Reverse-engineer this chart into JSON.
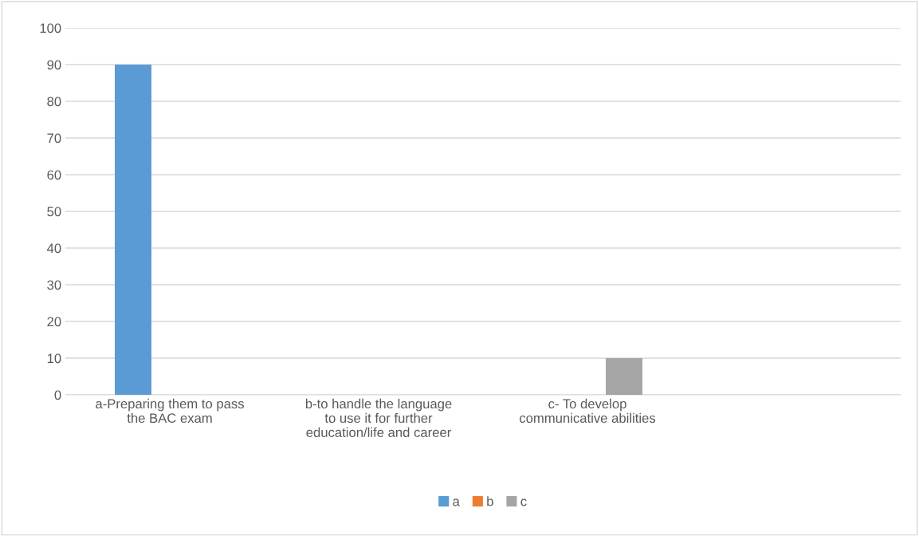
{
  "chart_data": {
    "type": "bar",
    "categories": [
      "a-Preparing them to pass\nthe BAC exam",
      "b-to handle the language\nto use it for further\neducation/life and career",
      "c- To develop\ncommunicative abilities",
      null
    ],
    "series": [
      {
        "name": "a",
        "color": "#5b9bd5",
        "values": [
          90,
          null,
          null,
          null
        ]
      },
      {
        "name": "b",
        "color": "#ed7d31",
        "values": [
          null,
          null,
          null,
          null
        ]
      },
      {
        "name": "c",
        "color": "#a5a5a5",
        "values": [
          null,
          null,
          10,
          null
        ]
      }
    ],
    "ylim": [
      0,
      100
    ],
    "yticks": [
      0,
      10,
      20,
      30,
      40,
      50,
      60,
      70,
      80,
      90,
      100
    ],
    "grid": "y",
    "legend": "bottom"
  }
}
